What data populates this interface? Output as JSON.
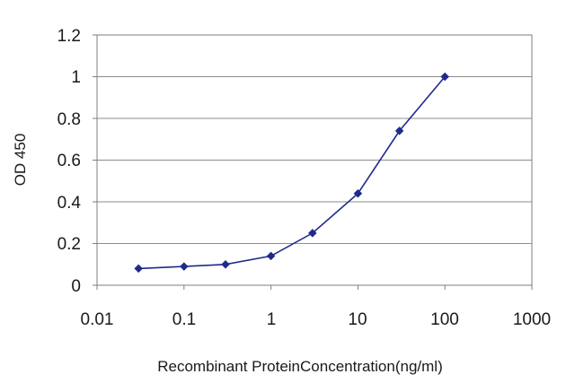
{
  "chart_data": {
    "type": "line",
    "title": "",
    "xlabel": "Recombinant ProteinConcentration(ng/ml)",
    "ylabel": "OD 450",
    "x_scale": "log",
    "xlim": [
      0.01,
      1000
    ],
    "ylim": [
      0,
      1.2
    ],
    "x_tick_labels": [
      "0.01",
      "0.1",
      "1",
      "10",
      "100",
      "1000"
    ],
    "x_ticks": [
      0.01,
      0.1,
      1,
      10,
      100,
      1000
    ],
    "y_tick_labels": [
      "0",
      "0.2",
      "0.4",
      "0.6",
      "0.8",
      "1",
      "1.2"
    ],
    "y_ticks": [
      0,
      0.2,
      0.4,
      0.6,
      0.8,
      1,
      1.2
    ],
    "grid": "horizontal",
    "legend": "none",
    "series": [
      {
        "x": [
          0.03,
          0.1,
          0.3,
          1,
          3,
          10,
          30,
          100
        ],
        "y": [
          0.08,
          0.09,
          0.1,
          0.14,
          0.25,
          0.44,
          0.74,
          1.0
        ],
        "color": "#1f2a8c"
      }
    ]
  }
}
